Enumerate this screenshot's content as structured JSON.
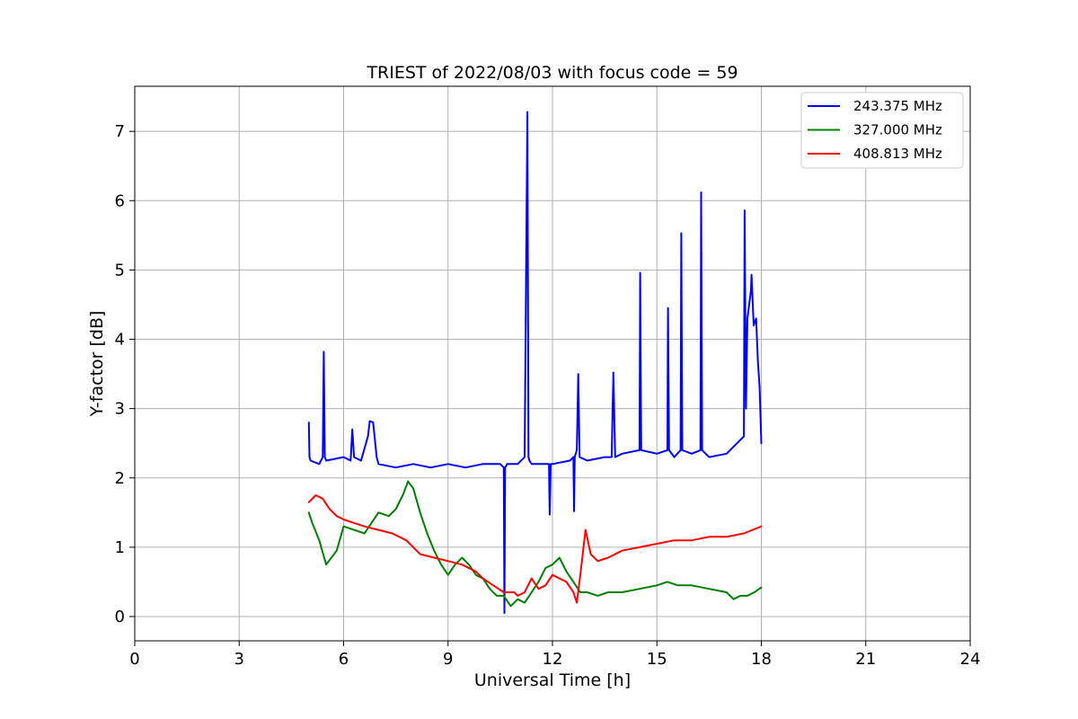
{
  "chart_data": {
    "type": "line",
    "title": "TRIEST of 2022/08/03 with focus code = 59",
    "xlabel": "Universal Time [h]",
    "ylabel": "Y-factor [dB]",
    "xlim": [
      0,
      24
    ],
    "ylim": [
      -0.35,
      7.65
    ],
    "xticks": [
      0,
      3,
      6,
      9,
      12,
      15,
      18,
      21,
      24
    ],
    "yticks": [
      0,
      1,
      2,
      3,
      4,
      5,
      6,
      7
    ],
    "grid": true,
    "legend_position": "top-right",
    "series": [
      {
        "name": "243.375 MHz",
        "color": "#0000ff",
        "x": [
          5.0,
          5.02,
          5.05,
          5.3,
          5.4,
          5.43,
          5.46,
          5.5,
          6.0,
          6.2,
          6.25,
          6.3,
          6.5,
          6.7,
          6.75,
          6.85,
          6.95,
          7.0,
          7.5,
          8.0,
          8.5,
          9.0,
          9.5,
          10.0,
          10.5,
          10.6,
          10.62,
          10.64,
          10.7,
          11.0,
          11.2,
          11.28,
          11.31,
          11.34,
          11.4,
          11.9,
          11.92,
          11.95,
          12.0,
          12.5,
          12.6,
          12.62,
          12.64,
          12.7,
          12.74,
          12.78,
          13.0,
          13.5,
          13.7,
          13.75,
          13.8,
          14.0,
          14.5,
          14.52,
          14.55,
          15.0,
          15.3,
          15.32,
          15.35,
          15.5,
          15.68,
          15.7,
          15.73,
          16.0,
          16.25,
          16.27,
          16.3,
          16.5,
          17.0,
          17.3,
          17.5,
          17.52,
          17.56,
          17.6,
          17.7,
          17.72,
          17.78,
          17.85,
          17.9,
          17.95,
          18.0
        ],
        "y": [
          2.8,
          2.3,
          2.25,
          2.2,
          2.3,
          3.82,
          2.3,
          2.25,
          2.3,
          2.25,
          2.7,
          2.3,
          2.25,
          2.6,
          2.82,
          2.8,
          2.3,
          2.2,
          2.15,
          2.2,
          2.15,
          2.2,
          2.15,
          2.2,
          2.2,
          2.15,
          0.05,
          2.15,
          2.2,
          2.2,
          2.3,
          7.28,
          2.3,
          2.25,
          2.2,
          2.2,
          1.47,
          2.2,
          2.2,
          2.25,
          2.3,
          1.52,
          2.3,
          2.4,
          3.5,
          2.3,
          2.25,
          2.3,
          2.3,
          3.52,
          2.3,
          2.35,
          2.4,
          4.96,
          2.4,
          2.35,
          2.4,
          4.45,
          2.4,
          2.3,
          2.4,
          5.53,
          2.4,
          2.35,
          2.4,
          6.12,
          2.4,
          2.3,
          2.35,
          2.5,
          2.6,
          5.86,
          3.0,
          4.3,
          4.7,
          4.93,
          4.2,
          4.3,
          3.7,
          3.3,
          2.5
        ]
      },
      {
        "name": "327.000 MHz",
        "color": "#008000",
        "x": [
          5.0,
          5.1,
          5.3,
          5.5,
          5.8,
          6.0,
          6.3,
          6.6,
          6.8,
          7.0,
          7.3,
          7.5,
          7.7,
          7.85,
          8.0,
          8.2,
          8.4,
          8.6,
          8.8,
          9.0,
          9.2,
          9.4,
          9.6,
          9.8,
          10.0,
          10.2,
          10.4,
          10.6,
          10.8,
          11.0,
          11.2,
          11.4,
          11.6,
          11.8,
          12.0,
          12.2,
          12.4,
          12.6,
          12.8,
          13.0,
          13.3,
          13.6,
          14.0,
          14.5,
          15.0,
          15.3,
          15.6,
          16.0,
          16.5,
          17.0,
          17.2,
          17.4,
          17.6,
          17.8,
          18.0
        ],
        "y": [
          1.5,
          1.35,
          1.1,
          0.75,
          0.95,
          1.3,
          1.25,
          1.2,
          1.35,
          1.5,
          1.45,
          1.55,
          1.75,
          1.95,
          1.85,
          1.5,
          1.2,
          0.95,
          0.75,
          0.6,
          0.75,
          0.85,
          0.75,
          0.6,
          0.55,
          0.4,
          0.3,
          0.3,
          0.15,
          0.25,
          0.2,
          0.35,
          0.5,
          0.7,
          0.75,
          0.85,
          0.65,
          0.5,
          0.35,
          0.35,
          0.3,
          0.35,
          0.35,
          0.4,
          0.45,
          0.5,
          0.45,
          0.45,
          0.4,
          0.35,
          0.25,
          0.3,
          0.3,
          0.35,
          0.42
        ]
      },
      {
        "name": "408.813 MHz",
        "color": "#ff0000",
        "x": [
          5.0,
          5.2,
          5.4,
          5.6,
          5.8,
          6.0,
          6.3,
          6.6,
          7.0,
          7.4,
          7.8,
          8.2,
          8.6,
          9.0,
          9.4,
          9.8,
          10.0,
          10.3,
          10.6,
          10.9,
          11.0,
          11.2,
          11.4,
          11.6,
          11.8,
          12.0,
          12.2,
          12.4,
          12.6,
          12.7,
          12.8,
          12.95,
          13.1,
          13.3,
          13.6,
          14.0,
          14.5,
          15.0,
          15.5,
          16.0,
          16.5,
          17.0,
          17.5,
          18.0
        ],
        "y": [
          1.65,
          1.75,
          1.7,
          1.55,
          1.45,
          1.4,
          1.35,
          1.3,
          1.25,
          1.2,
          1.1,
          0.9,
          0.85,
          0.8,
          0.75,
          0.65,
          0.55,
          0.45,
          0.35,
          0.35,
          0.3,
          0.35,
          0.55,
          0.4,
          0.45,
          0.6,
          0.55,
          0.5,
          0.35,
          0.2,
          0.6,
          1.25,
          0.9,
          0.8,
          0.85,
          0.95,
          1.0,
          1.05,
          1.1,
          1.1,
          1.15,
          1.15,
          1.2,
          1.3
        ]
      }
    ]
  }
}
